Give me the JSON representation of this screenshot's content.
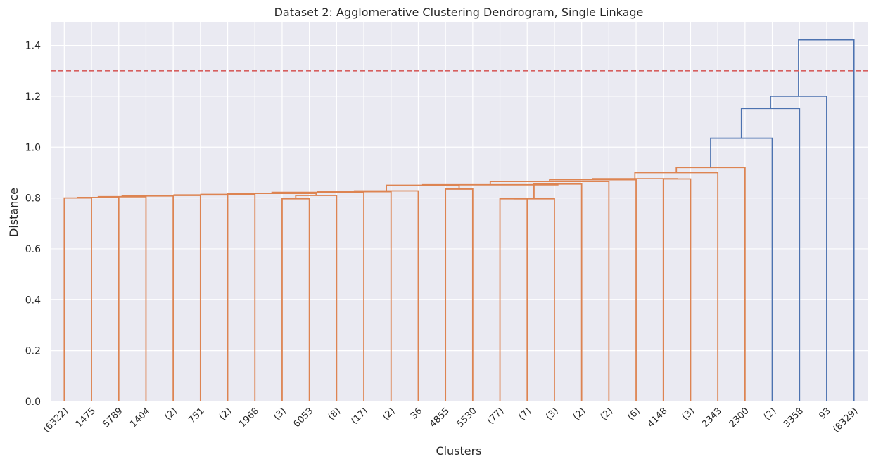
{
  "chart_data": {
    "type": "dendrogram",
    "title": "Dataset 2: Agglomerative Clustering Dendrogram, Single Linkage",
    "xlabel": "Clusters",
    "ylabel": "Distance",
    "ylim": [
      0,
      1.49
    ],
    "yticks": [
      0.0,
      0.2,
      0.4,
      0.6,
      0.8,
      1.0,
      1.2,
      1.4
    ],
    "grid": true,
    "background": "#eaeaf2",
    "cluster_color": "#dd8452",
    "above_cut_color": "#4c72b0",
    "cut_line": {
      "distance": 1.3,
      "color": "#d65f5f",
      "style": "dashed"
    },
    "leaves": [
      "(6322)",
      "1475",
      "5789",
      "1404",
      "(2)",
      "751",
      "(2)",
      "1968",
      "(3)",
      "6053",
      "(8)",
      "(17)",
      "(2)",
      "36",
      "4855",
      "5530",
      "(77)",
      "(7)",
      "(3)",
      "(2)",
      "(2)",
      "(6)",
      "4148",
      "(3)",
      "2343",
      "2300",
      "(2)",
      "3358",
      "93",
      "(8329)"
    ],
    "merges": [
      {
        "a": "L0",
        "b": "L1",
        "distance": 0.8,
        "color": "orange"
      },
      {
        "a": "N0",
        "b": "L2",
        "distance": 0.802,
        "color": "orange"
      },
      {
        "a": "N1",
        "b": "L3",
        "distance": 0.805,
        "color": "orange"
      },
      {
        "a": "N2",
        "b": "L4",
        "distance": 0.808,
        "color": "orange"
      },
      {
        "a": "N3",
        "b": "L5",
        "distance": 0.81,
        "color": "orange"
      },
      {
        "a": "N4",
        "b": "L6",
        "distance": 0.812,
        "color": "orange"
      },
      {
        "a": "N5",
        "b": "L7",
        "distance": 0.814,
        "color": "orange"
      },
      {
        "a": "L8",
        "b": "L9",
        "distance": 0.797,
        "color": "orange"
      },
      {
        "a": "N7",
        "b": "L10",
        "distance": 0.81,
        "color": "orange"
      },
      {
        "a": "N6",
        "b": "N8",
        "distance": 0.818,
        "color": "orange"
      },
      {
        "a": "N9",
        "b": "L11",
        "distance": 0.822,
        "color": "orange"
      },
      {
        "a": "N10",
        "b": "L12",
        "distance": 0.825,
        "color": "orange"
      },
      {
        "a": "N11",
        "b": "L13",
        "distance": 0.828,
        "color": "orange"
      },
      {
        "a": "L14",
        "b": "L15",
        "distance": 0.835,
        "color": "orange"
      },
      {
        "a": "N12",
        "b": "N13",
        "distance": 0.85,
        "color": "orange"
      },
      {
        "a": "L16",
        "b": "L17",
        "distance": 0.797,
        "color": "orange"
      },
      {
        "a": "N15",
        "b": "L18",
        "distance": 0.797,
        "color": "orange"
      },
      {
        "a": "N16",
        "b": "L19",
        "distance": 0.855,
        "color": "orange"
      },
      {
        "a": "N14",
        "b": "N17",
        "distance": 0.852,
        "color": "orange"
      },
      {
        "a": "N18",
        "b": "L20",
        "distance": 0.865,
        "color": "orange"
      },
      {
        "a": "N19",
        "b": "L21",
        "distance": 0.872,
        "color": "orange"
      },
      {
        "a": "L22",
        "b": "L23",
        "distance": 0.875,
        "color": "orange"
      },
      {
        "a": "N20",
        "b": "N21",
        "distance": 0.876,
        "color": "orange"
      },
      {
        "a": "N22",
        "b": "L24",
        "distance": 0.9,
        "color": "orange"
      },
      {
        "a": "N23",
        "b": "L25",
        "distance": 0.92,
        "color": "orange"
      },
      {
        "a": "N24",
        "b": "L26",
        "distance": 1.035,
        "color": "blue"
      },
      {
        "a": "N25",
        "b": "L27",
        "distance": 1.152,
        "color": "blue"
      },
      {
        "a": "N26",
        "b": "L28",
        "distance": 1.2,
        "color": "blue"
      },
      {
        "a": "N27",
        "b": "L29",
        "distance": 1.422,
        "color": "blue"
      }
    ]
  }
}
